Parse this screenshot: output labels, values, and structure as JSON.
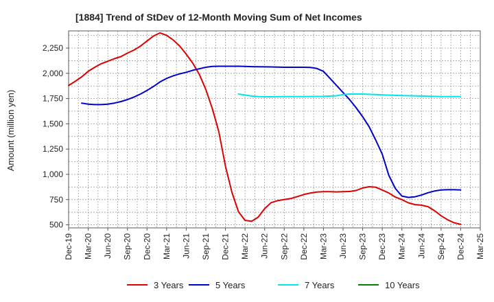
{
  "chart_data": {
    "type": "line",
    "title": "[1884]  Trend of StDev of 12-Month Moving Sum of Net Incomes",
    "xlabel": "",
    "ylabel": "Amount (million yen)",
    "x_tick_labels": [
      "Dec-19",
      "Mar-20",
      "Jun-20",
      "Sep-20",
      "Dec-20",
      "Mar-21",
      "Jun-21",
      "Sep-21",
      "Dec-21",
      "Mar-22",
      "Jun-22",
      "Sep-22",
      "Dec-22",
      "Mar-23",
      "Jun-23",
      "Sep-23",
      "Dec-23",
      "Mar-24",
      "Jun-24",
      "Sep-24",
      "Dec-24",
      "Mar-25"
    ],
    "y_ticks": [
      500,
      750,
      1000,
      1250,
      1500,
      1750,
      2000,
      2250
    ],
    "y_tick_labels": [
      "500",
      "750",
      "1,000",
      "1,250",
      "1,500",
      "1,750",
      "2,000",
      "2,250"
    ],
    "ylim": [
      470,
      2420
    ],
    "grid": true,
    "legend_position": "bottom",
    "series": [
      {
        "name": "3 Years",
        "color": "#dd0000",
        "points": [
          [
            "Dec-19",
            1880
          ],
          [
            "Jan-20",
            1920
          ],
          [
            "Feb-20",
            1965
          ],
          [
            "Mar-20",
            2020
          ],
          [
            "Apr-20",
            2060
          ],
          [
            "May-20",
            2095
          ],
          [
            "Jun-20",
            2120
          ],
          [
            "Jul-20",
            2145
          ],
          [
            "Aug-20",
            2165
          ],
          [
            "Sep-20",
            2200
          ],
          [
            "Oct-20",
            2230
          ],
          [
            "Nov-20",
            2270
          ],
          [
            "Dec-20",
            2320
          ],
          [
            "Jan-21",
            2370
          ],
          [
            "Feb-21",
            2400
          ],
          [
            "Mar-21",
            2375
          ],
          [
            "Apr-21",
            2330
          ],
          [
            "May-21",
            2270
          ],
          [
            "Jun-21",
            2190
          ],
          [
            "Jul-21",
            2100
          ],
          [
            "Aug-21",
            1990
          ],
          [
            "Sep-21",
            1840
          ],
          [
            "Oct-21",
            1650
          ],
          [
            "Nov-21",
            1420
          ],
          [
            "Dec-21",
            1080
          ],
          [
            "Jan-22",
            820
          ],
          [
            "Feb-22",
            630
          ],
          [
            "Mar-22",
            545
          ],
          [
            "Apr-22",
            535
          ],
          [
            "May-22",
            575
          ],
          [
            "Jun-22",
            660
          ],
          [
            "Jul-22",
            720
          ],
          [
            "Aug-22",
            740
          ],
          [
            "Sep-22",
            750
          ],
          [
            "Oct-22",
            760
          ],
          [
            "Nov-22",
            780
          ],
          [
            "Dec-22",
            800
          ],
          [
            "Jan-23",
            815
          ],
          [
            "Feb-23",
            825
          ],
          [
            "Mar-23",
            828
          ],
          [
            "Apr-23",
            828
          ],
          [
            "May-23",
            826
          ],
          [
            "Jun-23",
            828
          ],
          [
            "Jul-23",
            830
          ],
          [
            "Aug-23",
            840
          ],
          [
            "Sep-23",
            865
          ],
          [
            "Oct-23",
            878
          ],
          [
            "Nov-23",
            872
          ],
          [
            "Dec-23",
            845
          ],
          [
            "Jan-24",
            815
          ],
          [
            "Feb-24",
            775
          ],
          [
            "Mar-24",
            750
          ],
          [
            "Apr-24",
            718
          ],
          [
            "May-24",
            700
          ],
          [
            "Jun-24",
            695
          ],
          [
            "Jul-24",
            680
          ],
          [
            "Aug-24",
            640
          ],
          [
            "Sep-24",
            590
          ],
          [
            "Oct-24",
            550
          ],
          [
            "Nov-24",
            520
          ],
          [
            "Dec-24",
            505
          ]
        ]
      },
      {
        "name": "5 Years",
        "color": "#0000cc",
        "points": [
          [
            "Feb-20",
            1705
          ],
          [
            "Mar-20",
            1695
          ],
          [
            "Apr-20",
            1690
          ],
          [
            "May-20",
            1690
          ],
          [
            "Jun-20",
            1695
          ],
          [
            "Jul-20",
            1705
          ],
          [
            "Aug-20",
            1720
          ],
          [
            "Sep-20",
            1740
          ],
          [
            "Oct-20",
            1765
          ],
          [
            "Nov-20",
            1795
          ],
          [
            "Dec-20",
            1830
          ],
          [
            "Jan-21",
            1870
          ],
          [
            "Feb-21",
            1915
          ],
          [
            "Mar-21",
            1950
          ],
          [
            "Apr-21",
            1975
          ],
          [
            "May-21",
            1995
          ],
          [
            "Jun-21",
            2010
          ],
          [
            "Jul-21",
            2030
          ],
          [
            "Aug-21",
            2045
          ],
          [
            "Sep-21",
            2060
          ],
          [
            "Oct-21",
            2068
          ],
          [
            "Nov-21",
            2070
          ],
          [
            "Dec-21",
            2070
          ],
          [
            "Jan-22",
            2070
          ],
          [
            "Feb-22",
            2070
          ],
          [
            "Mar-22",
            2068
          ],
          [
            "Apr-22",
            2066
          ],
          [
            "May-22",
            2065
          ],
          [
            "Jun-22",
            2064
          ],
          [
            "Jul-22",
            2063
          ],
          [
            "Aug-22",
            2062
          ],
          [
            "Sep-22",
            2060
          ],
          [
            "Oct-22",
            2060
          ],
          [
            "Nov-22",
            2060
          ],
          [
            "Dec-22",
            2060
          ],
          [
            "Jan-23",
            2058
          ],
          [
            "Feb-23",
            2048
          ],
          [
            "Mar-23",
            2020
          ],
          [
            "Apr-23",
            1950
          ],
          [
            "May-23",
            1880
          ],
          [
            "Jun-23",
            1810
          ],
          [
            "Jul-23",
            1740
          ],
          [
            "Aug-23",
            1660
          ],
          [
            "Sep-23",
            1570
          ],
          [
            "Oct-23",
            1470
          ],
          [
            "Nov-23",
            1340
          ],
          [
            "Dec-23",
            1200
          ],
          [
            "Jan-24",
            990
          ],
          [
            "Feb-24",
            860
          ],
          [
            "Mar-24",
            785
          ],
          [
            "Apr-24",
            772
          ],
          [
            "May-24",
            778
          ],
          [
            "Jun-24",
            795
          ],
          [
            "Jul-24",
            818
          ],
          [
            "Aug-24",
            835
          ],
          [
            "Sep-24",
            845
          ],
          [
            "Oct-24",
            848
          ],
          [
            "Nov-24",
            848
          ],
          [
            "Dec-24",
            845
          ]
        ]
      },
      {
        "name": "7 Years",
        "color": "#00e5e5",
        "points": [
          [
            "Feb-22",
            1795
          ],
          [
            "Mar-22",
            1785
          ],
          [
            "Apr-22",
            1775
          ],
          [
            "May-22",
            1770
          ],
          [
            "Jun-22",
            1768
          ],
          [
            "Jul-22",
            1768
          ],
          [
            "Sep-22",
            1770
          ],
          [
            "Dec-22",
            1770
          ],
          [
            "Mar-23",
            1772
          ],
          [
            "May-23",
            1778
          ],
          [
            "Jun-23",
            1790
          ],
          [
            "Jul-23",
            1795
          ],
          [
            "Sep-23",
            1795
          ],
          [
            "Oct-23",
            1792
          ],
          [
            "Nov-23",
            1790
          ],
          [
            "Dec-23",
            1787
          ],
          [
            "Mar-24",
            1780
          ],
          [
            "Jun-24",
            1775
          ],
          [
            "Sep-24",
            1770
          ],
          [
            "Dec-24",
            1770
          ]
        ]
      },
      {
        "name": "10 Years",
        "color": "#008000",
        "points": []
      }
    ]
  }
}
